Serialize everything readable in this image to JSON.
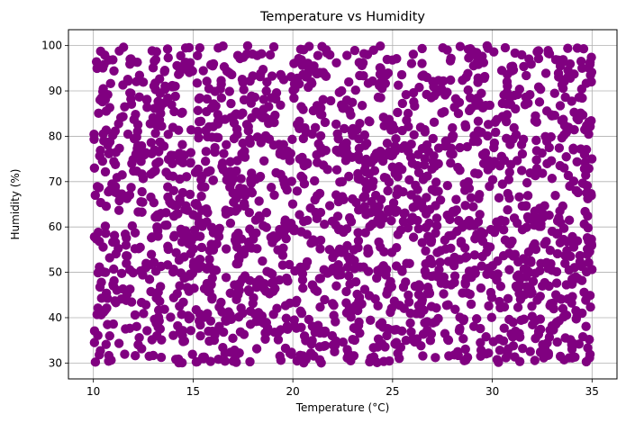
{
  "chart_data": {
    "type": "scatter",
    "title": "Temperature vs Humidity",
    "xlabel": "Temperature (°C)",
    "ylabel": "Humidity (%)",
    "xlim": [
      8.75,
      36.25
    ],
    "ylim": [
      26.5,
      103.5
    ],
    "xticks": [
      10,
      15,
      20,
      25,
      30,
      35
    ],
    "yticks": [
      30,
      40,
      50,
      60,
      70,
      80,
      90,
      100
    ],
    "grid": true,
    "marker_color": "#800080",
    "point_count": 2000,
    "x_range": [
      10,
      35
    ],
    "y_range": [
      30,
      100
    ],
    "distribution": "uniform random",
    "series": [
      {
        "values_sample": [
          [
            10.1,
            30.2
          ],
          [
            12.8,
            31.5
          ],
          [
            16.6,
            30.4
          ],
          [
            19.4,
            30.6
          ],
          [
            22.9,
            30.5
          ],
          [
            28.1,
            31.8
          ],
          [
            33.6,
            30.7
          ],
          [
            34.9,
            31.9
          ],
          [
            11.0,
            38.6
          ],
          [
            13.3,
            39.3
          ],
          [
            18.1,
            40.8
          ],
          [
            20.8,
            39.6
          ],
          [
            26.2,
            40.9
          ],
          [
            29.4,
            37.6
          ],
          [
            33.0,
            38.2
          ],
          [
            34.5,
            41.0
          ],
          [
            10.4,
            47.8
          ],
          [
            14.3,
            52.7
          ],
          [
            17.6,
            49.2
          ],
          [
            21.1,
            46.2
          ],
          [
            24.7,
            50.6
          ],
          [
            27.8,
            52.4
          ],
          [
            31.4,
            47.1
          ],
          [
            34.0,
            48.5
          ],
          [
            11.6,
            58.4
          ],
          [
            15.4,
            60.9
          ],
          [
            18.9,
            57.7
          ],
          [
            22.3,
            59.4
          ],
          [
            26.0,
            62.1
          ],
          [
            29.1,
            60.3
          ],
          [
            32.7,
            56.8
          ],
          [
            34.8,
            59.8
          ],
          [
            10.2,
            68.9
          ],
          [
            13.8,
            71.3
          ],
          [
            17.0,
            67.5
          ],
          [
            20.5,
            70.8
          ],
          [
            24.1,
            72.4
          ],
          [
            28.6,
            69.5
          ],
          [
            31.9,
            71.9
          ],
          [
            34.3,
            67.6
          ],
          [
            12.2,
            77.3
          ],
          [
            14.9,
            81.4
          ],
          [
            18.4,
            78.6
          ],
          [
            23.0,
            80.2
          ],
          [
            25.6,
            77.9
          ],
          [
            29.8,
            82.6
          ],
          [
            32.2,
            79.1
          ],
          [
            34.7,
            81.8
          ],
          [
            10.6,
            88.1
          ],
          [
            13.1,
            91.7
          ],
          [
            16.1,
            89.9
          ],
          [
            20.1,
            90.4
          ],
          [
            24.4,
            88.5
          ],
          [
            27.3,
            92.3
          ],
          [
            31.1,
            89.0
          ],
          [
            34.1,
            93.7
          ],
          [
            11.3,
            98.8
          ],
          [
            14.6,
            96.2
          ],
          [
            16.5,
            99.9
          ],
          [
            21.7,
            98.4
          ],
          [
            25.2,
            97.1
          ],
          [
            28.9,
            99.3
          ],
          [
            32.8,
            98.9
          ],
          [
            34.9,
            96.3
          ]
        ]
      }
    ]
  }
}
